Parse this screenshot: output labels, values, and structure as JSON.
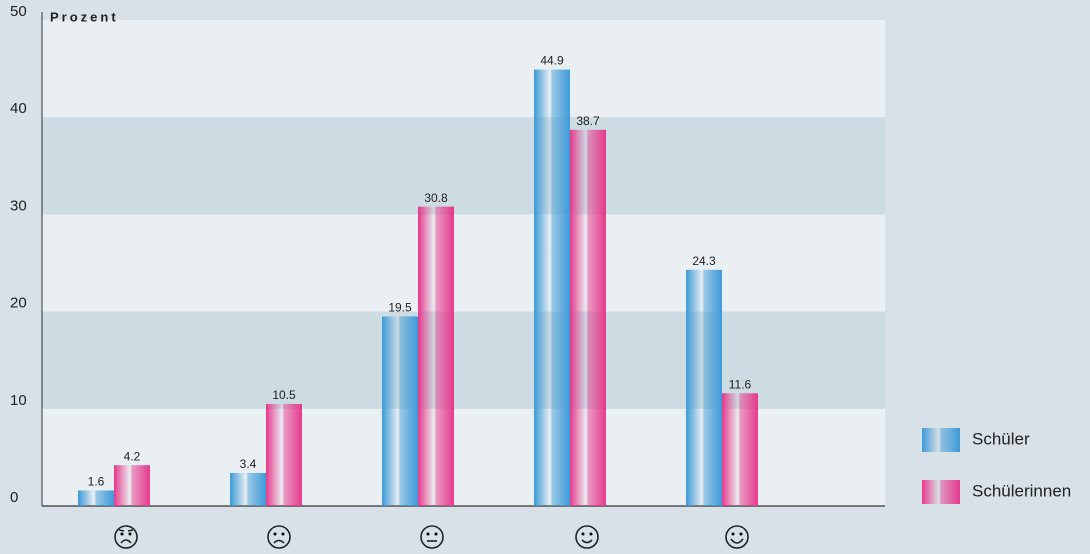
{
  "chart_data": {
    "type": "bar",
    "y_label": "Prozent",
    "categories": [
      null,
      null,
      null,
      null,
      null
    ],
    "series": [
      {
        "name": "Schüler",
        "color": "#3d9ad8",
        "values": [
          1.6,
          3.4,
          19.5,
          44.9,
          24.3
        ]
      },
      {
        "name": "Schülerinnen",
        "color": "#e6388c",
        "values": [
          4.2,
          10.5,
          30.8,
          38.7,
          11.6
        ]
      }
    ],
    "ylim": [
      0,
      50
    ],
    "yticks": [
      0,
      10,
      20,
      30,
      40,
      50
    ],
    "grid": true,
    "legend": "right"
  }
}
